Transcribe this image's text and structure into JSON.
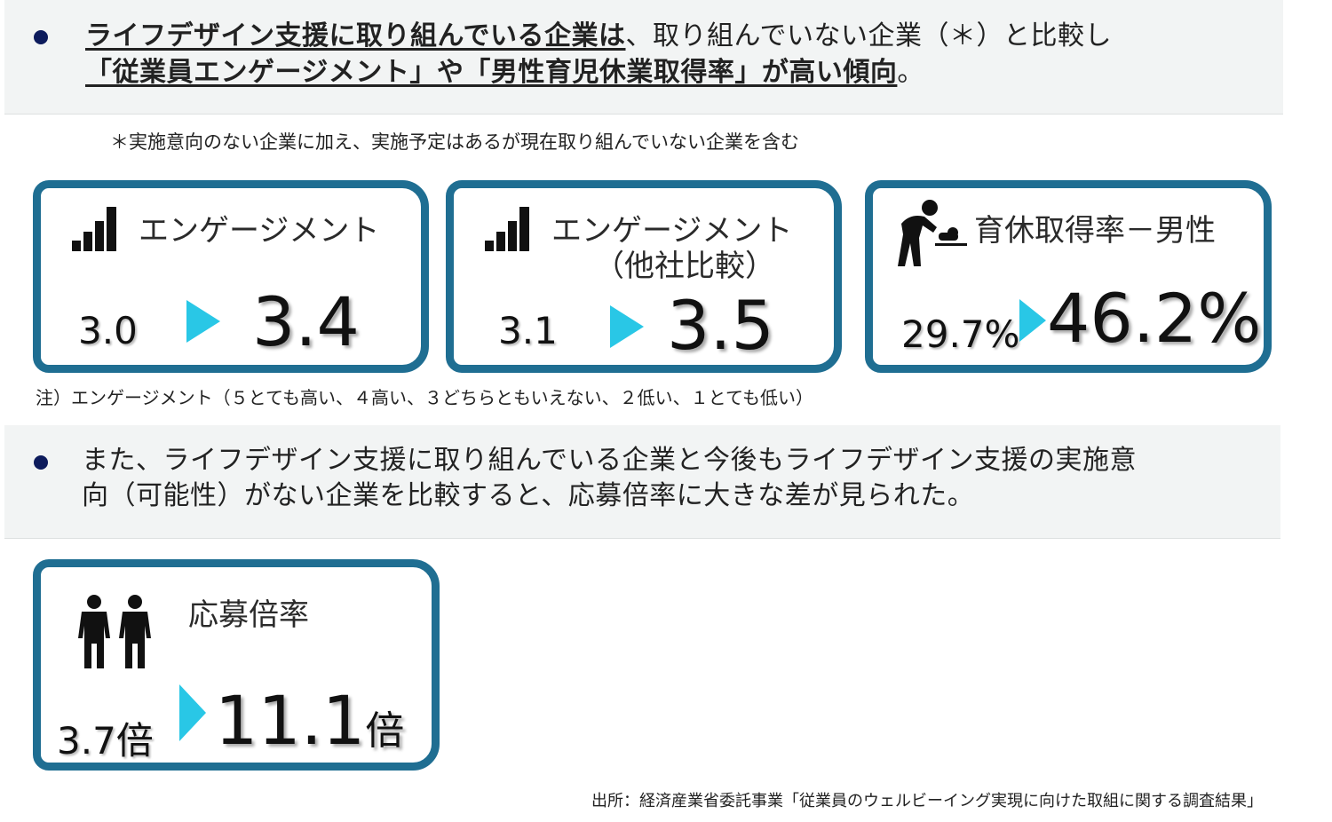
{
  "summary1": {
    "line1_emph": "ライフデザイン支援に取り組んでいる企業は",
    "line1_rest": "、取り組んでいない企業（＊）と比較し",
    "line2_emph": "「従業員エンゲージメント」や「男性育児休業取得率」が高い傾向",
    "line2_rest": "。"
  },
  "footnote": "＊実施意向のない企業に加え、実施予定はあるが現在取り組んでいない企業を含む",
  "cards": [
    {
      "title": "エンゲージメント",
      "from": "3.0",
      "to": "3.4",
      "icon": "signal-bars-icon"
    },
    {
      "title": "エンゲージメント",
      "subtitle": "（他社比較）",
      "from": "3.1",
      "to": "3.5",
      "icon": "signal-bars-icon"
    },
    {
      "title": "育休取得率－男性",
      "from": "29.7%",
      "to": "46.2%",
      "icon": "diaper-changing-icon"
    },
    {
      "title": "応募倍率",
      "from": "3.7倍",
      "to": "11.1",
      "to_unit": "倍",
      "icon": "two-people-icon"
    }
  ],
  "scale_note": "注）エンゲージメント（５とても高い、４高い、３どちらともいえない、２低い、１とても低い）",
  "summary2": {
    "line1": "また、ライフデザイン支援に取り組んでいる企業と今後もライフデザイン支援の実施意",
    "line2": "向（可能性）がない企業を比較すると、応募倍率に大きな差が見られた。"
  },
  "source": "出所：経済産業省委託事業「従業員のウェルビーイング実現に向けた取組に関する調査結果」",
  "colors": {
    "card_border": "#1f6e92",
    "arrow": "#29c7e6",
    "bullet": "#0d1b5c",
    "band": "#f2f4f4"
  }
}
